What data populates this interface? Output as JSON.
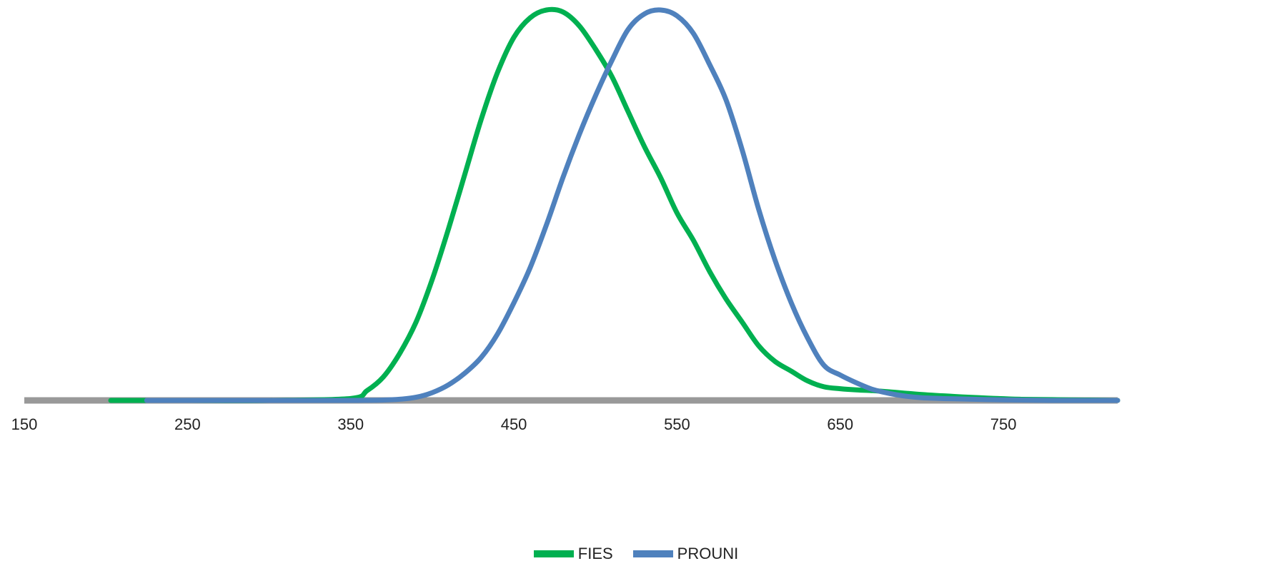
{
  "chart_data": {
    "type": "line",
    "title": "",
    "xlabel": "",
    "ylabel": "",
    "xlim": [
      150,
      820
    ],
    "ylim": [
      0,
      1
    ],
    "x_ticks": [
      "150",
      "250",
      "350",
      "450",
      "550",
      "650",
      "750"
    ],
    "grid": false,
    "legend_position": "bottom",
    "axis_color": "#999999",
    "series": [
      {
        "name": "FIES",
        "color": "#00b050",
        "x": [
          203,
          225,
          250,
          300,
          350,
          360,
          370,
          380,
          390,
          400,
          410,
          420,
          430,
          440,
          450,
          460,
          470,
          480,
          490,
          500,
          510,
          520,
          530,
          540,
          550,
          560,
          570,
          580,
          590,
          600,
          610,
          620,
          630,
          640,
          650,
          660,
          670,
          680,
          700,
          720,
          740,
          760,
          780,
          800,
          820
        ],
        "y": [
          0.0,
          0.0,
          0.0,
          0.0,
          0.005,
          0.025,
          0.06,
          0.12,
          0.2,
          0.31,
          0.44,
          0.58,
          0.72,
          0.84,
          0.93,
          0.98,
          1.0,
          0.995,
          0.96,
          0.9,
          0.83,
          0.74,
          0.65,
          0.57,
          0.48,
          0.41,
          0.33,
          0.26,
          0.2,
          0.14,
          0.1,
          0.075,
          0.05,
          0.035,
          0.03,
          0.027,
          0.025,
          0.022,
          0.015,
          0.01,
          0.006,
          0.003,
          0.002,
          0.001,
          0.0
        ]
      },
      {
        "name": "PROUNI",
        "color": "#4f81bd",
        "x": [
          225,
          250,
          300,
          350,
          370,
          380,
          390,
          400,
          410,
          420,
          430,
          440,
          450,
          460,
          470,
          480,
          490,
          500,
          510,
          520,
          530,
          540,
          550,
          560,
          570,
          580,
          590,
          600,
          610,
          620,
          630,
          640,
          650,
          660,
          670,
          680,
          690,
          700,
          720,
          740,
          760,
          780,
          800,
          820
        ],
        "y": [
          0.0,
          0.0,
          0.0,
          0.0,
          0.001,
          0.003,
          0.008,
          0.02,
          0.04,
          0.07,
          0.11,
          0.17,
          0.25,
          0.34,
          0.45,
          0.57,
          0.68,
          0.78,
          0.87,
          0.95,
          0.99,
          1.0,
          0.985,
          0.94,
          0.86,
          0.77,
          0.64,
          0.49,
          0.36,
          0.25,
          0.16,
          0.09,
          0.065,
          0.045,
          0.028,
          0.018,
          0.011,
          0.007,
          0.004,
          0.002,
          0.001,
          0.0,
          0.0,
          0.0
        ]
      }
    ]
  }
}
